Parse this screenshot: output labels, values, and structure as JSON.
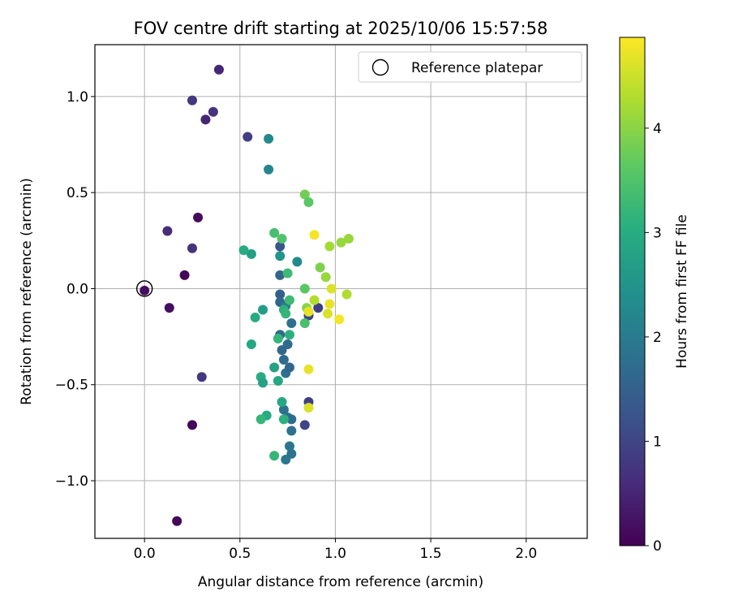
{
  "chart_data": {
    "type": "scatter",
    "title": "FOV centre drift starting at 2025/10/06 15:57:58",
    "xlabel": "Angular distance from reference (arcmin)",
    "ylabel": "Rotation from reference (arcmin)",
    "xlim": [
      -0.26,
      2.32
    ],
    "ylim": [
      -1.3,
      1.27
    ],
    "xticks": [
      0.0,
      0.5,
      1.0,
      1.5,
      2.0
    ],
    "xtick_labels": [
      "0.0",
      "0.5",
      "1.0",
      "1.5",
      "2.0"
    ],
    "yticks": [
      -1.0,
      -0.5,
      0.0,
      0.5,
      1.0
    ],
    "ytick_labels": [
      "−1.0",
      "−0.5",
      "0.0",
      "0.5",
      "1.0"
    ],
    "grid": true,
    "legend": {
      "position": "top-right",
      "entries": [
        "Reference platepar"
      ]
    },
    "reference": {
      "x": 0.0,
      "y": 0.0
    },
    "colorbar": {
      "label": "Hours from first FF file",
      "colormap": "viridis",
      "range": [
        0,
        4.87
      ],
      "ticks": [
        0,
        1,
        2,
        3,
        4
      ],
      "tick_labels": [
        "0",
        "1",
        "2",
        "3",
        "4"
      ]
    },
    "points": [
      {
        "x": 0.0,
        "y": -0.01,
        "h": 0.2
      },
      {
        "x": 0.13,
        "y": -0.1,
        "h": 0.2
      },
      {
        "x": 0.17,
        "y": -1.21,
        "h": 0.1
      },
      {
        "x": 0.21,
        "y": 0.07,
        "h": 0.1
      },
      {
        "x": 0.25,
        "y": -0.71,
        "h": 0.1
      },
      {
        "x": 0.28,
        "y": 0.37,
        "h": 0.15
      },
      {
        "x": 0.12,
        "y": 0.3,
        "h": 0.6
      },
      {
        "x": 0.25,
        "y": 0.21,
        "h": 0.7
      },
      {
        "x": 0.3,
        "y": -0.46,
        "h": 0.8
      },
      {
        "x": 0.25,
        "y": 0.98,
        "h": 0.8
      },
      {
        "x": 0.32,
        "y": 0.88,
        "h": 0.5
      },
      {
        "x": 0.36,
        "y": 0.92,
        "h": 0.7
      },
      {
        "x": 0.39,
        "y": 1.14,
        "h": 0.5
      },
      {
        "x": 0.54,
        "y": 0.79,
        "h": 0.9
      },
      {
        "x": 0.65,
        "y": 0.78,
        "h": 2.3
      },
      {
        "x": 0.65,
        "y": 0.62,
        "h": 2.2
      },
      {
        "x": 0.84,
        "y": -0.71,
        "h": 1.0
      },
      {
        "x": 0.86,
        "y": -0.59,
        "h": 0.9
      },
      {
        "x": 0.91,
        "y": -0.1,
        "h": 0.9
      },
      {
        "x": 0.86,
        "y": -0.14,
        "h": 1.0
      },
      {
        "x": 0.71,
        "y": 0.22,
        "h": 1.3
      },
      {
        "x": 0.71,
        "y": 0.07,
        "h": 1.6
      },
      {
        "x": 0.71,
        "y": -0.03,
        "h": 1.5
      },
      {
        "x": 0.71,
        "y": -0.07,
        "h": 1.6
      },
      {
        "x": 0.72,
        "y": -0.32,
        "h": 1.6
      },
      {
        "x": 0.73,
        "y": -0.37,
        "h": 1.7
      },
      {
        "x": 0.74,
        "y": -0.44,
        "h": 1.8
      },
      {
        "x": 0.75,
        "y": -0.29,
        "h": 1.7
      },
      {
        "x": 0.76,
        "y": -0.41,
        "h": 1.6
      },
      {
        "x": 0.71,
        "y": -0.24,
        "h": 1.7
      },
      {
        "x": 0.73,
        "y": -0.63,
        "h": 1.8
      },
      {
        "x": 0.75,
        "y": -0.67,
        "h": 1.8
      },
      {
        "x": 0.77,
        "y": -0.68,
        "h": 1.7
      },
      {
        "x": 0.77,
        "y": -0.74,
        "h": 1.8
      },
      {
        "x": 0.76,
        "y": -0.82,
        "h": 1.9
      },
      {
        "x": 0.77,
        "y": -0.86,
        "h": 1.8
      },
      {
        "x": 0.74,
        "y": -0.89,
        "h": 1.9
      },
      {
        "x": 0.77,
        "y": -0.18,
        "h": 1.8
      },
      {
        "x": 0.74,
        "y": -0.09,
        "h": 2.0
      },
      {
        "x": 0.8,
        "y": 0.14,
        "h": 2.3
      },
      {
        "x": 0.71,
        "y": 0.17,
        "h": 2.5
      },
      {
        "x": 0.62,
        "y": -0.11,
        "h": 2.7
      },
      {
        "x": 0.56,
        "y": 0.18,
        "h": 2.7
      },
      {
        "x": 0.52,
        "y": 0.2,
        "h": 3.0
      },
      {
        "x": 0.58,
        "y": -0.15,
        "h": 3.0
      },
      {
        "x": 0.56,
        "y": -0.29,
        "h": 2.9
      },
      {
        "x": 0.61,
        "y": -0.46,
        "h": 3.0
      },
      {
        "x": 0.62,
        "y": -0.49,
        "h": 2.8
      },
      {
        "x": 0.68,
        "y": -0.41,
        "h": 2.8
      },
      {
        "x": 0.7,
        "y": -0.48,
        "h": 2.9
      },
      {
        "x": 0.7,
        "y": -0.26,
        "h": 3.2
      },
      {
        "x": 0.72,
        "y": -0.59,
        "h": 2.9
      },
      {
        "x": 0.64,
        "y": -0.66,
        "h": 3.0
      },
      {
        "x": 0.61,
        "y": -0.68,
        "h": 3.2
      },
      {
        "x": 0.73,
        "y": -0.68,
        "h": 3.1
      },
      {
        "x": 0.68,
        "y": -0.87,
        "h": 3.2
      },
      {
        "x": 0.73,
        "y": -0.11,
        "h": 3.1
      },
      {
        "x": 0.74,
        "y": -0.13,
        "h": 3.2
      },
      {
        "x": 0.76,
        "y": -0.24,
        "h": 3.1
      },
      {
        "x": 0.76,
        "y": -0.06,
        "h": 3.3
      },
      {
        "x": 0.75,
        "y": 0.08,
        "h": 3.3
      },
      {
        "x": 0.68,
        "y": 0.29,
        "h": 3.4
      },
      {
        "x": 0.72,
        "y": 0.26,
        "h": 3.5
      },
      {
        "x": 0.84,
        "y": 0.49,
        "h": 3.8
      },
      {
        "x": 0.86,
        "y": 0.45,
        "h": 3.6
      },
      {
        "x": 0.84,
        "y": -0.18,
        "h": 3.4
      },
      {
        "x": 0.84,
        "y": 0.0,
        "h": 3.6
      },
      {
        "x": 0.85,
        "y": -0.1,
        "h": 4.0
      },
      {
        "x": 0.92,
        "y": 0.11,
        "h": 3.9
      },
      {
        "x": 0.95,
        "y": 0.06,
        "h": 4.1
      },
      {
        "x": 0.97,
        "y": 0.22,
        "h": 4.2
      },
      {
        "x": 1.03,
        "y": 0.24,
        "h": 4.1
      },
      {
        "x": 1.07,
        "y": 0.26,
        "h": 4.1
      },
      {
        "x": 1.06,
        "y": -0.03,
        "h": 4.3
      },
      {
        "x": 0.89,
        "y": 0.28,
        "h": 4.8
      },
      {
        "x": 0.89,
        "y": -0.06,
        "h": 4.3
      },
      {
        "x": 0.98,
        "y": 0.0,
        "h": 4.6
      },
      {
        "x": 0.97,
        "y": -0.08,
        "h": 4.7
      },
      {
        "x": 0.96,
        "y": -0.13,
        "h": 4.6
      },
      {
        "x": 1.02,
        "y": -0.16,
        "h": 4.8
      },
      {
        "x": 0.86,
        "y": -0.12,
        "h": 4.7
      },
      {
        "x": 0.86,
        "y": -0.42,
        "h": 4.7
      },
      {
        "x": 0.86,
        "y": -0.62,
        "h": 4.6
      }
    ]
  }
}
